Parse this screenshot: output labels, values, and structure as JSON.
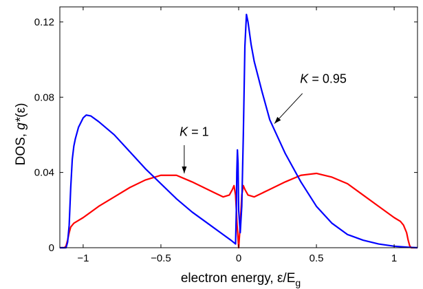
{
  "chart_data": {
    "type": "line",
    "xlabel_main": "electron energy, ε/E",
    "xlabel_sub": "g",
    "ylabel_main": "DOS, ",
    "ylabel_italic": "g*",
    "ylabel_tail": "(ε)",
    "xlim": [
      -1.15,
      1.15
    ],
    "ylim": [
      0,
      0.128
    ],
    "xticks": [
      -1,
      -0.5,
      0,
      0.5,
      1
    ],
    "xtick_labels": [
      "−1",
      "−0.5",
      "0",
      "0.5",
      "1"
    ],
    "yticks": [
      0,
      0.04,
      0.08,
      0.12
    ],
    "ytick_labels": [
      "0",
      "0.04",
      "0.08",
      "0.12"
    ],
    "grid": false,
    "series": [
      {
        "name": "K = 1",
        "color": "#ff0000",
        "x": [
          -1.15,
          -1.12,
          -1.11,
          -1.1,
          -1.09,
          -1.08,
          -1.06,
          -1.04,
          -1.0,
          -0.9,
          -0.8,
          -0.7,
          -0.6,
          -0.5,
          -0.4,
          -0.3,
          -0.25,
          -0.2,
          -0.15,
          -0.1,
          -0.06,
          -0.04,
          -0.03,
          -0.02,
          -0.01,
          0.0,
          0.01,
          0.02,
          0.03,
          0.04,
          0.06,
          0.1,
          0.15,
          0.2,
          0.25,
          0.3,
          0.4,
          0.5,
          0.6,
          0.7,
          0.8,
          0.9,
          1.0,
          1.04,
          1.06,
          1.08,
          1.09,
          1.1,
          1.11,
          1.12,
          1.15
        ],
        "y": [
          0,
          0,
          0.001,
          0.004,
          0.008,
          0.011,
          0.013,
          0.014,
          0.016,
          0.022,
          0.027,
          0.032,
          0.036,
          0.0385,
          0.0385,
          0.035,
          0.033,
          0.031,
          0.029,
          0.027,
          0.028,
          0.031,
          0.033,
          0.028,
          0.012,
          0,
          0.012,
          0.028,
          0.033,
          0.031,
          0.028,
          0.027,
          0.029,
          0.031,
          0.033,
          0.035,
          0.0385,
          0.0395,
          0.0375,
          0.034,
          0.028,
          0.022,
          0.016,
          0.014,
          0.012,
          0.008,
          0.004,
          0.001,
          0,
          0,
          0
        ]
      },
      {
        "name": "K = 0.95",
        "color": "#0000ff",
        "x": [
          -1.15,
          -1.11,
          -1.1,
          -1.09,
          -1.08,
          -1.07,
          -1.06,
          -1.05,
          -1.03,
          -1.0,
          -0.98,
          -0.95,
          -0.9,
          -0.8,
          -0.7,
          -0.6,
          -0.5,
          -0.4,
          -0.3,
          -0.2,
          -0.1,
          -0.05,
          -0.02,
          -0.015,
          -0.012,
          -0.008,
          -0.004,
          0.0,
          0.01,
          0.02,
          0.03,
          0.04,
          0.05,
          0.06,
          0.07,
          0.08,
          0.1,
          0.15,
          0.2,
          0.25,
          0.3,
          0.4,
          0.5,
          0.6,
          0.7,
          0.8,
          0.9,
          1.0,
          1.1,
          1.15
        ],
        "y": [
          0,
          0,
          0.003,
          0.012,
          0.032,
          0.047,
          0.054,
          0.058,
          0.064,
          0.069,
          0.0705,
          0.07,
          0.067,
          0.06,
          0.051,
          0.042,
          0.034,
          0.026,
          0.019,
          0.013,
          0.007,
          0.004,
          0.002,
          0.02,
          0.04,
          0.052,
          0.045,
          0.02,
          0.008,
          0.022,
          0.06,
          0.107,
          0.124,
          0.12,
          0.114,
          0.108,
          0.099,
          0.083,
          0.068,
          0.059,
          0.05,
          0.035,
          0.022,
          0.013,
          0.007,
          0.004,
          0.002,
          0.0008,
          0.0002,
          0
        ]
      }
    ],
    "annotations": [
      {
        "italic": "K",
        "rest": " = 1"
      },
      {
        "italic": "K",
        "rest": " = 0.95"
      }
    ]
  }
}
